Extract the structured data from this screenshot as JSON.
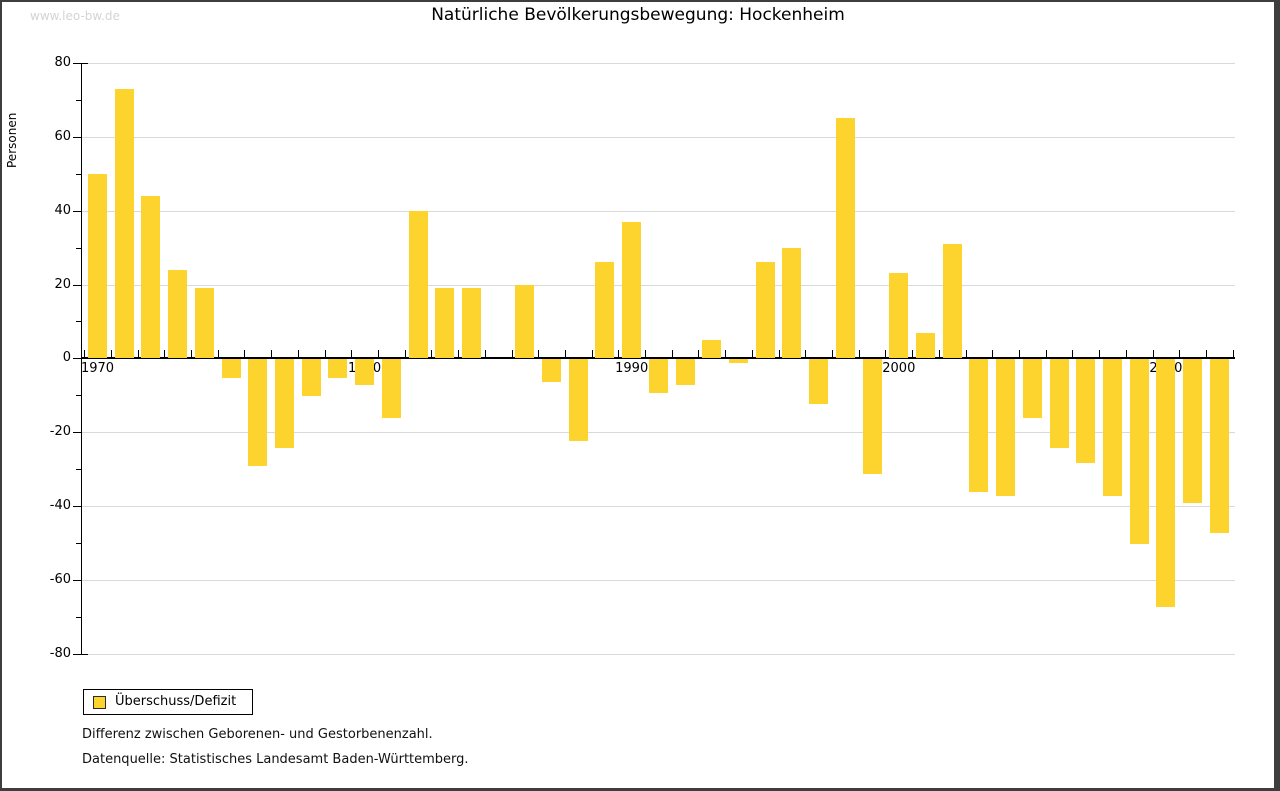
{
  "watermark": "www.leo-bw.de",
  "title": "Natürliche Bevölkerungsbewegung: Hockenheim",
  "legend": {
    "label": "Überschuss/Defizit"
  },
  "footnotes": [
    "Differenz zwischen Geborenen- und Gestorbenenzahl.",
    "Datenquelle: Statistisches Landesamt Baden-Württemberg."
  ],
  "colors": {
    "bar": "#fcd42d",
    "grid": "#d9d9d9",
    "axis": "#000000",
    "watermark": "#d4d4d4",
    "frame": "#3e3e3e"
  },
  "chart_data": {
    "type": "bar",
    "title": "Natürliche Bevölkerungsbewegung: Hockenheim",
    "xlabel": "",
    "ylabel": "Personen",
    "ylim": [
      -80,
      80
    ],
    "y_ticks": [
      80,
      60,
      40,
      20,
      0,
      -20,
      -40,
      -60,
      -80
    ],
    "y_minor_ticks": [
      70,
      50,
      30,
      10,
      -10,
      -30,
      -50,
      -70
    ],
    "x_tick_labels": [
      "1970",
      "1980",
      "1990",
      "2000",
      "2010"
    ],
    "grid": "horizontal",
    "legend_position": "bottom-left",
    "series": [
      {
        "name": "Überschuss/Defizit",
        "color": "#fcd42d"
      }
    ],
    "x": [
      1970,
      1971,
      1972,
      1973,
      1974,
      1975,
      1976,
      1977,
      1978,
      1979,
      1980,
      1981,
      1982,
      1983,
      1984,
      1985,
      1986,
      1987,
      1988,
      1989,
      1990,
      1991,
      1992,
      1993,
      1994,
      1995,
      1996,
      1997,
      1998,
      1999,
      2000,
      2001,
      2002,
      2003,
      2004,
      2005,
      2006,
      2007,
      2008,
      2009,
      2010,
      2011,
      2012
    ],
    "values": [
      50,
      73,
      44,
      24,
      19,
      -5,
      -29,
      -24,
      -10,
      -5,
      -7,
      -16,
      40,
      19,
      19,
      0,
      20,
      -6,
      -22,
      26,
      37,
      -9,
      -7,
      5,
      -1,
      26,
      30,
      -12,
      65,
      -31,
      23,
      7,
      31,
      -36,
      -37,
      -16,
      -24,
      -28,
      -37,
      -50,
      -67,
      -39,
      -47
    ]
  }
}
